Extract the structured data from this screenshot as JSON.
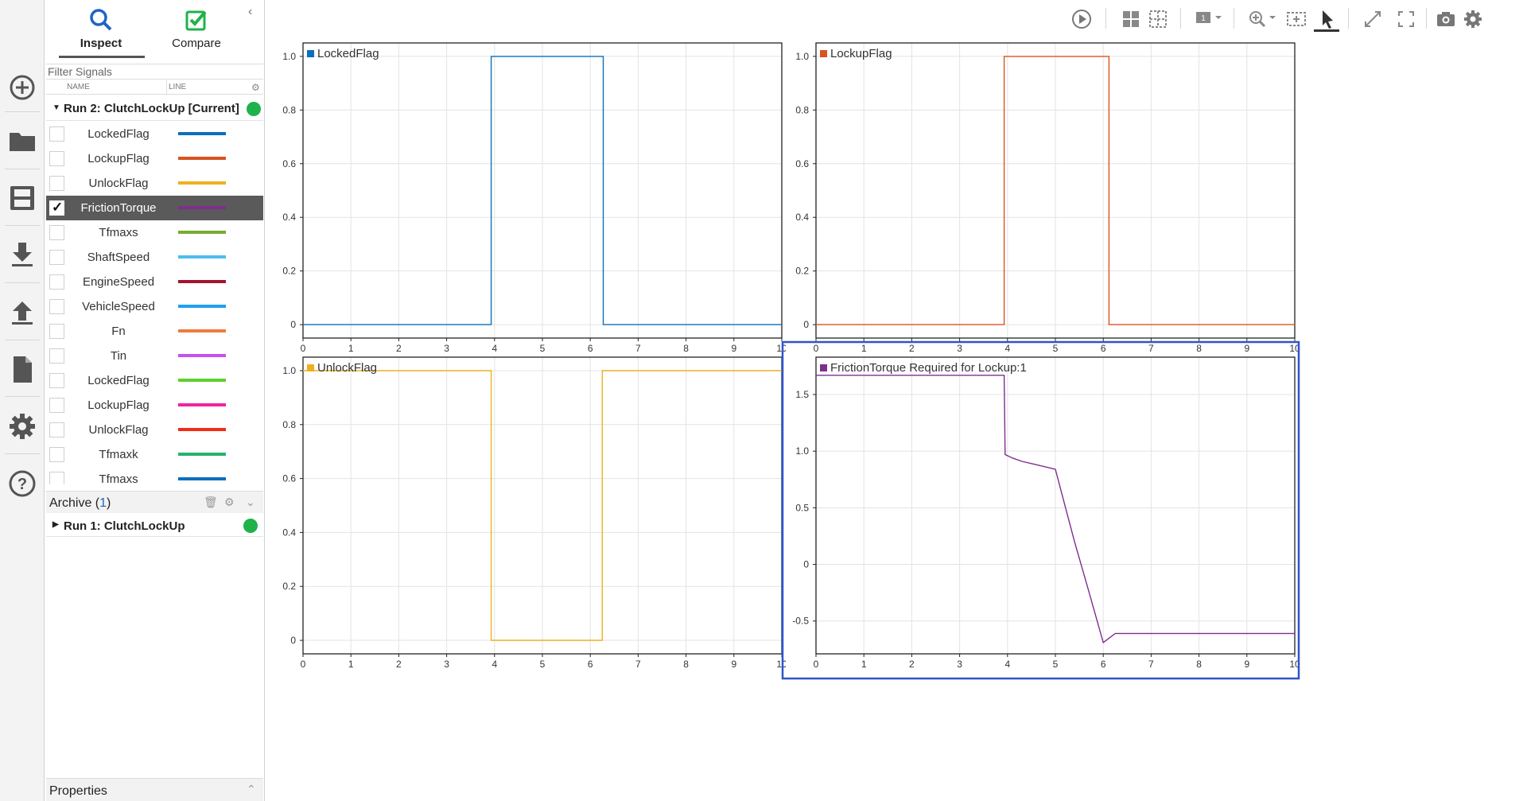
{
  "tabs": {
    "inspect": "Inspect",
    "compare": "Compare"
  },
  "filter": {
    "placeholder": "Filter Signals"
  },
  "columns": {
    "name": "NAME",
    "line": "LINE"
  },
  "current_run": {
    "label": "Run 2: ClutchLockUp [Current]",
    "status_color": "#1fb24a"
  },
  "signals": [
    {
      "name": "LockedFlag",
      "color": "#0b6fbd",
      "checked": false
    },
    {
      "name": "LockupFlag",
      "color": "#d9541e",
      "checked": false
    },
    {
      "name": "UnlockFlag",
      "color": "#edb120",
      "checked": false
    },
    {
      "name": "FrictionTorque",
      "color": "#7e2f8e",
      "checked": true
    },
    {
      "name": "Tfmaxs",
      "color": "#77ac30",
      "checked": false
    },
    {
      "name": "ShaftSpeed",
      "color": "#4dbeee",
      "checked": false
    },
    {
      "name": "EngineSpeed",
      "color": "#a2142f",
      "checked": false
    },
    {
      "name": "VehicleSpeed",
      "color": "#21a0f0",
      "checked": false
    },
    {
      "name": "Fn",
      "color": "#f07b3c",
      "checked": false
    },
    {
      "name": "Tin",
      "color": "#c84ff0",
      "checked": false
    },
    {
      "name": "LockedFlag",
      "color": "#5fd12c",
      "checked": false
    },
    {
      "name": "LockupFlag",
      "color": "#f0249f",
      "checked": false
    },
    {
      "name": "UnlockFlag",
      "color": "#f02d18",
      "checked": false
    },
    {
      "name": "Tfmaxk",
      "color": "#25b26e",
      "checked": false
    },
    {
      "name": "Tfmaxs",
      "color": "#0b6fbd",
      "checked": false
    }
  ],
  "archive": {
    "label": "Archive (",
    "count": "1",
    "close": ")",
    "run_label": "Run 1: ClutchLockUp",
    "status_color": "#1fb24a"
  },
  "properties": {
    "label": "Properties"
  },
  "toolbar": {
    "icons": [
      "play-icon",
      "layout-grid-icon",
      "subplot-icon",
      "subplot-select-icon",
      "zoom-in-icon",
      "zoom-box-icon",
      "cursor-icon",
      "fit-to-view-icon",
      "fullscreen-icon",
      "snapshot-icon",
      "settings-icon"
    ]
  },
  "chart_data": [
    {
      "type": "line",
      "series": [
        {
          "name": "LockedFlag",
          "color": "#0b6fbd",
          "x": [
            0,
            3.93,
            3.93,
            6.27,
            6.27,
            10
          ],
          "y": [
            0,
            0,
            1,
            1,
            0,
            0
          ]
        }
      ],
      "xlim": [
        0,
        10
      ],
      "ylim": [
        -0.05,
        1.05
      ],
      "xticks": [
        0,
        1,
        2,
        3,
        4,
        5,
        6,
        7,
        8,
        9,
        10
      ],
      "yticks": [
        0,
        0.2,
        0.4,
        0.6,
        0.8,
        1.0
      ],
      "ytick_labels": [
        "0",
        "0.2",
        "0.4",
        "0.6",
        "0.8",
        "1.0"
      ],
      "grid": true,
      "legend": "top-left",
      "selected": false
    },
    {
      "type": "line",
      "series": [
        {
          "name": "LockupFlag",
          "color": "#d9541e",
          "x": [
            0,
            3.93,
            3.93,
            6.12,
            6.12,
            10
          ],
          "y": [
            0,
            0,
            1,
            1,
            0,
            0
          ]
        }
      ],
      "xlim": [
        0,
        10
      ],
      "ylim": [
        -0.05,
        1.05
      ],
      "xticks": [
        0,
        1,
        2,
        3,
        4,
        5,
        6,
        7,
        8,
        9,
        10
      ],
      "yticks": [
        0,
        0.2,
        0.4,
        0.6,
        0.8,
        1.0
      ],
      "ytick_labels": [
        "0",
        "0.2",
        "0.4",
        "0.6",
        "0.8",
        "1.0"
      ],
      "grid": true,
      "legend": "top-left",
      "selected": false
    },
    {
      "type": "line",
      "series": [
        {
          "name": "UnlockFlag",
          "color": "#edb120",
          "x": [
            0,
            3.93,
            3.93,
            6.25,
            6.25,
            10
          ],
          "y": [
            1,
            1,
            0,
            0,
            1,
            1
          ]
        }
      ],
      "xlim": [
        0,
        10
      ],
      "ylim": [
        -0.05,
        1.05
      ],
      "xticks": [
        0,
        1,
        2,
        3,
        4,
        5,
        6,
        7,
        8,
        9,
        10
      ],
      "yticks": [
        0,
        0.2,
        0.4,
        0.6,
        0.8,
        1.0
      ],
      "ytick_labels": [
        "0",
        "0.2",
        "0.4",
        "0.6",
        "0.8",
        "1.0"
      ],
      "grid": true,
      "legend": "top-left",
      "selected": false
    },
    {
      "type": "line",
      "series": [
        {
          "name": "FrictionTorque Required for Lockup:1",
          "color": "#7e2f8e",
          "x": [
            0,
            3.93,
            3.95,
            4.1,
            4.3,
            4.6,
            5.0,
            5.15,
            5.4,
            5.7,
            6.0,
            6.25,
            6.3,
            10
          ],
          "y": [
            1.67,
            1.67,
            0.97,
            0.94,
            0.91,
            0.88,
            0.84,
            0.6,
            0.2,
            -0.24,
            -0.69,
            -0.61,
            -0.61,
            -0.61
          ]
        }
      ],
      "xlim": [
        0,
        10
      ],
      "ylim": [
        -0.79,
        1.83
      ],
      "xticks": [
        0,
        1,
        2,
        3,
        4,
        5,
        6,
        7,
        8,
        9,
        10
      ],
      "yticks": [
        -0.5,
        0,
        0.5,
        1.0,
        1.5
      ],
      "ytick_labels": [
        "-0.5",
        "0",
        "0.5",
        "1.0",
        "1.5"
      ],
      "grid": true,
      "legend": "top-left",
      "selected": true
    }
  ]
}
